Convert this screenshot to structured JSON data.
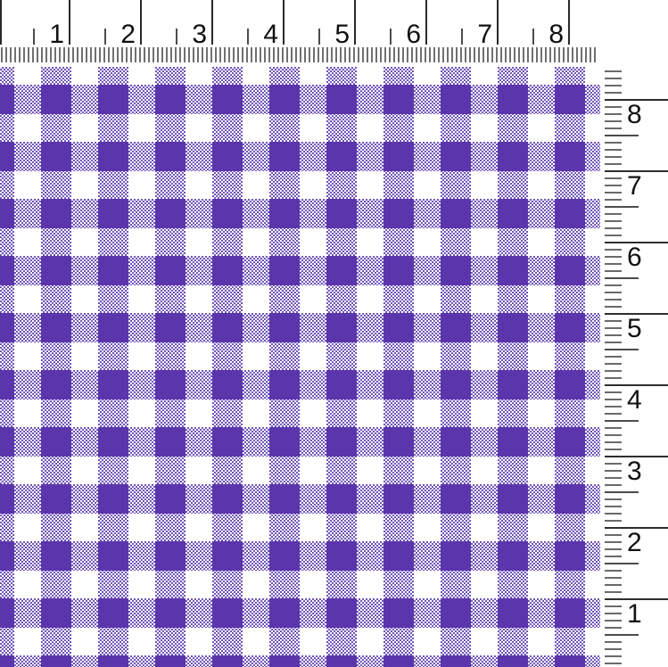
{
  "colors": {
    "dark_purple": "#5b35ac",
    "checker_purple": "#7055bb",
    "white": "#ffffff",
    "tick": "#111111"
  },
  "rulers": {
    "top": {
      "labels": [
        "1",
        "2",
        "3",
        "4",
        "5",
        "6",
        "7",
        "8"
      ]
    },
    "right": {
      "labels": [
        "8",
        "7",
        "6",
        "5",
        "4",
        "3",
        "2",
        "1"
      ]
    }
  }
}
